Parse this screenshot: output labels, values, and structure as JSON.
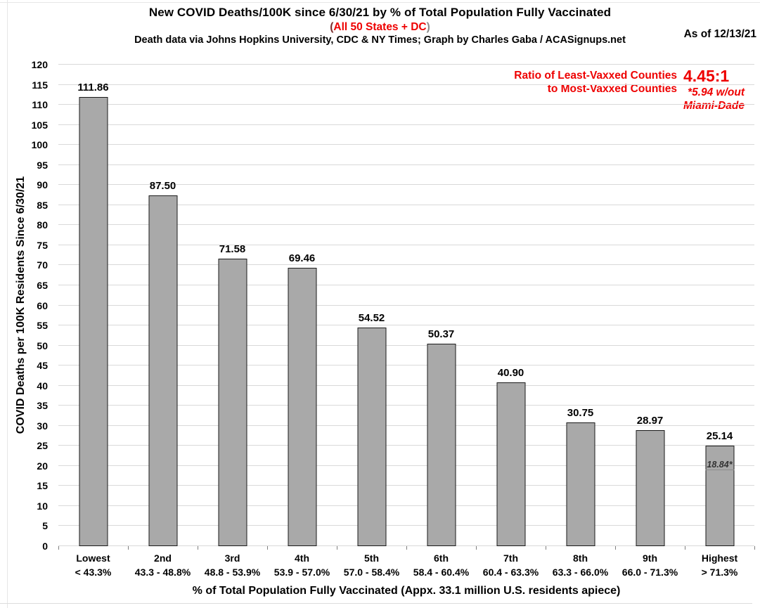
{
  "page": {
    "as_of": "As of 12/13/21"
  },
  "header": {
    "title": "New COVID Deaths/100K since 6/30/21 by % of Total Population Fully Vaccinated",
    "subtitle_paren_open": "(",
    "subtitle_text": "All 50 States + DC",
    "subtitle_paren_close": ")",
    "credit": "Death data via Johns Hopkins University, CDC & NY Times; Graph by Charles Gaba / ACASignups.net"
  },
  "annotation": {
    "ratio_label": "Ratio of Least-Vaxxed Counties\nto Most-Vaxxed Counties",
    "ratio_value": "4.45:1",
    "ratio_note": "*5.94 w/out\nMiami-Dade",
    "color": "#ee0000"
  },
  "chart_data": {
    "type": "bar",
    "title": "New COVID Deaths/100K since 6/30/21 by % of Total Population Fully Vaccinated",
    "xlabel": "% of Total Population Fully Vaccinated (Appx. 33.1 million U.S. residents apiece)",
    "ylabel": "COVID Deaths per 100K Residents Since 6/30/21",
    "ylim": [
      0,
      120
    ],
    "y_tick_step": 5,
    "grid": true,
    "bar_color": "#a9a9a9",
    "bar_border_color": "#1a1a1a",
    "categories": [
      {
        "tier": "Lowest",
        "range": "< 43.3%"
      },
      {
        "tier": "2nd",
        "range": "43.3 - 48.8%"
      },
      {
        "tier": "3rd",
        "range": "48.8 - 53.9%"
      },
      {
        "tier": "4th",
        "range": "53.9 - 57.0%"
      },
      {
        "tier": "5th",
        "range": "57.0 - 58.4%"
      },
      {
        "tier": "6th",
        "range": "58.4 - 60.4%"
      },
      {
        "tier": "7th",
        "range": "60.4 - 63.3%"
      },
      {
        "tier": "8th",
        "range": "63.3 - 66.0%"
      },
      {
        "tier": "9th",
        "range": "66.0 - 71.3%"
      },
      {
        "tier": "Highest",
        "range": "> 71.3%"
      }
    ],
    "values": [
      111.86,
      87.5,
      71.58,
      69.46,
      54.52,
      50.37,
      40.9,
      30.75,
      28.97,
      25.14
    ],
    "value_labels": [
      "111.86",
      "87.50",
      "71.58",
      "69.46",
      "54.52",
      "50.37",
      "40.90",
      "30.75",
      "28.97",
      "25.14"
    ],
    "bar_annotation": {
      "bar_index": 9,
      "value": 18.84,
      "label": "18.84*"
    }
  }
}
